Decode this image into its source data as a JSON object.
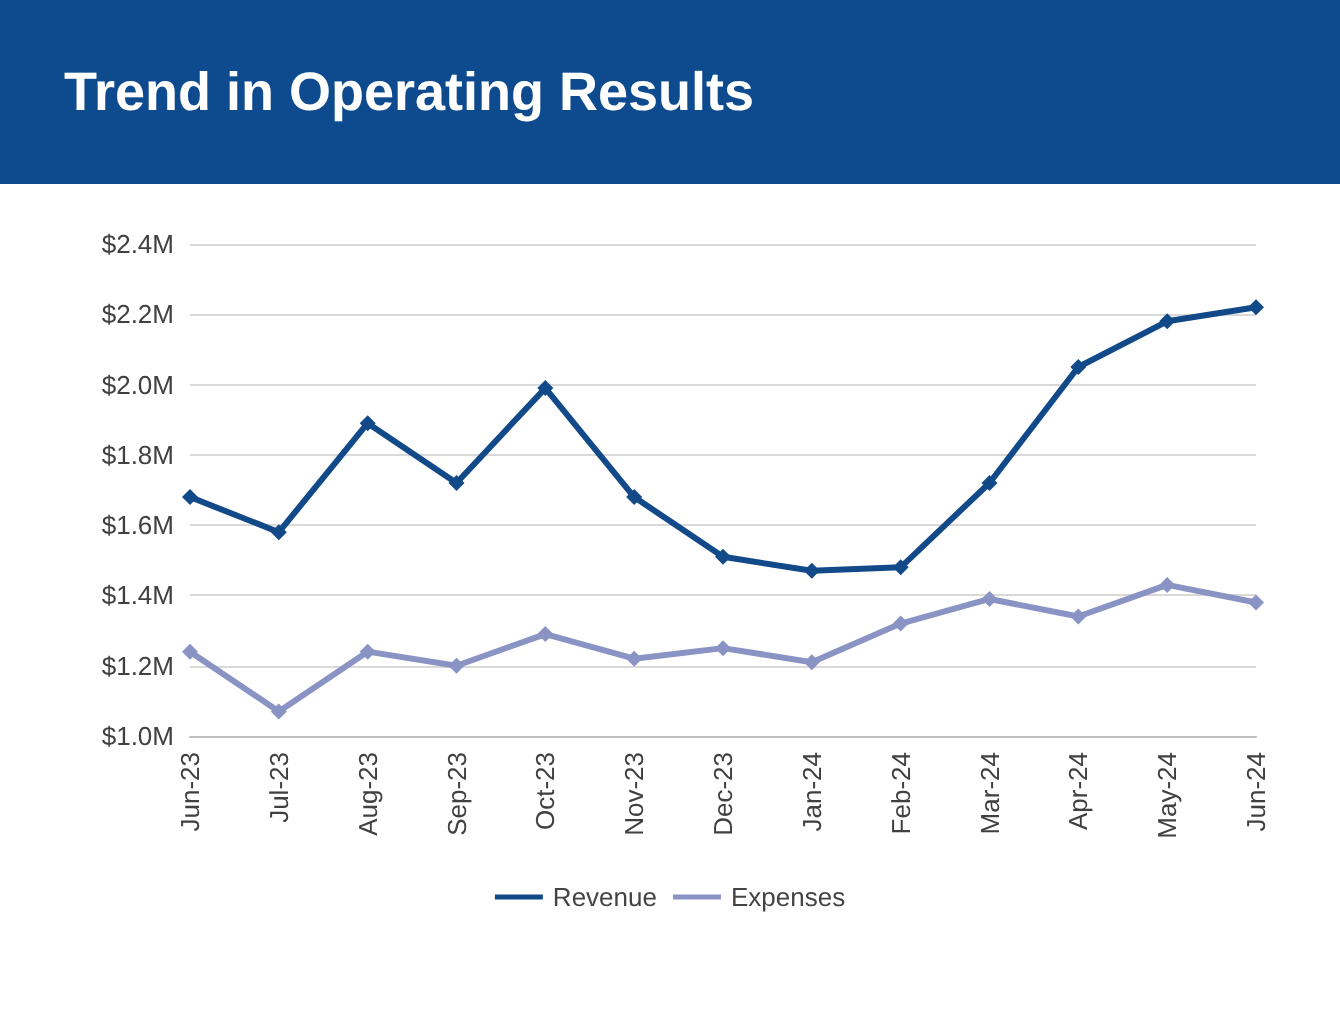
{
  "chart_data": {
    "type": "line",
    "title": "Trend in Operating Results",
    "categories": [
      "Jun-23",
      "Jul-23",
      "Aug-23",
      "Sep-23",
      "Oct-23",
      "Nov-23",
      "Dec-23",
      "Jan-24",
      "Feb-24",
      "Mar-24",
      "Apr-24",
      "May-24",
      "Jun-24"
    ],
    "series": [
      {
        "name": "Revenue",
        "color": "#124a89",
        "values": [
          1.68,
          1.58,
          1.89,
          1.72,
          1.99,
          1.68,
          1.51,
          1.47,
          1.48,
          1.72,
          2.05,
          2.18,
          2.22
        ]
      },
      {
        "name": "Expenses",
        "color": "#8a94c4",
        "values": [
          1.24,
          1.07,
          1.24,
          1.2,
          1.29,
          1.22,
          1.25,
          1.21,
          1.32,
          1.39,
          1.34,
          1.43,
          1.38
        ]
      }
    ],
    "ylim": [
      1.0,
      2.4
    ],
    "yticks": [
      {
        "value": 1.0,
        "label": "$1.0M"
      },
      {
        "value": 1.2,
        "label": "$1.2M"
      },
      {
        "value": 1.4,
        "label": "$1.4M"
      },
      {
        "value": 1.6,
        "label": "$1.6M"
      },
      {
        "value": 1.8,
        "label": "$1.8M"
      },
      {
        "value": 2.0,
        "label": "$2.0M"
      },
      {
        "value": 2.2,
        "label": "$2.2M"
      },
      {
        "value": 2.4,
        "label": "$2.4M"
      }
    ],
    "grid": "y",
    "legend": "bottom",
    "marker": "diamond",
    "line_style": "solid"
  }
}
